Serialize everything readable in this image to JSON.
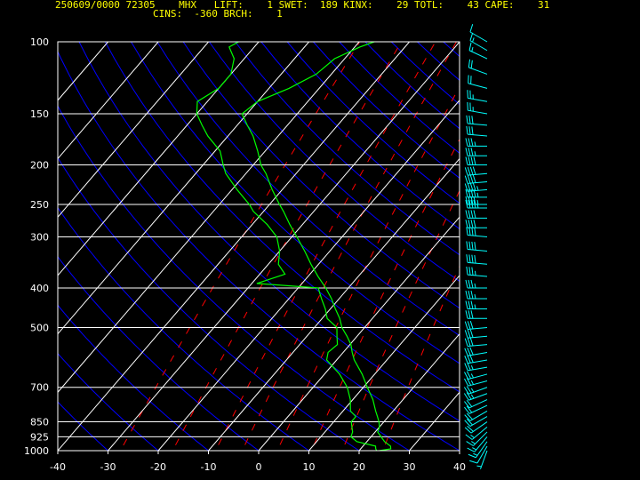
{
  "header": {
    "line1": "250609/0000 72305    MHX   LIFT:    1 SWET:  189 KINX:    29 TOTL:    43 CAPE:    31",
    "line2": "CINS:  -360 BRCH:    1"
  },
  "colors": {
    "background": "#000000",
    "header_text": "#ffff00",
    "axis_text": "#ffffff",
    "isobars_isotherms": "#ffffff",
    "dry_adiabats": "#0000ff",
    "mixing_ratio": "#ff0000",
    "temperature": "#00ff00",
    "dewpoint": "#00ff00",
    "wind_barbs": "#00ffff"
  },
  "chart_data": {
    "type": "line",
    "subtype": "skew-t log-p",
    "x_axis": {
      "range": [
        -40,
        40
      ],
      "ticks": [
        "-40",
        "-30",
        "-20",
        "-10",
        "0",
        "10",
        "20",
        "30",
        "40"
      ]
    },
    "y_axis": {
      "range": [
        1000,
        100
      ],
      "scale": "log",
      "ticks": [
        "100",
        "150",
        "200",
        "250",
        "300",
        "400",
        "500",
        "700",
        "850",
        "925",
        "1000"
      ]
    },
    "series": [
      {
        "key": "temperature",
        "points": [
          [
            1000,
            24
          ],
          [
            990,
            26
          ],
          [
            975,
            25.5
          ],
          [
            950,
            23.5
          ],
          [
            925,
            22
          ],
          [
            900,
            20.5
          ],
          [
            875,
            20
          ],
          [
            850,
            19
          ],
          [
            825,
            17.8
          ],
          [
            800,
            16.5
          ],
          [
            750,
            14
          ],
          [
            700,
            10.8
          ],
          [
            650,
            7.5
          ],
          [
            600,
            3.5
          ],
          [
            575,
            1.8
          ],
          [
            550,
            0.2
          ],
          [
            525,
            -2
          ],
          [
            500,
            -4.5
          ],
          [
            475,
            -6.5
          ],
          [
            450,
            -9
          ],
          [
            425,
            -11.5
          ],
          [
            400,
            -14.5
          ],
          [
            375,
            -18
          ],
          [
            350,
            -21.5
          ],
          [
            325,
            -25
          ],
          [
            300,
            -29
          ],
          [
            280,
            -32.5
          ],
          [
            260,
            -36
          ],
          [
            250,
            -38
          ],
          [
            230,
            -42
          ],
          [
            210,
            -46
          ],
          [
            200,
            -48.5
          ],
          [
            185,
            -51.5
          ],
          [
            170,
            -55
          ],
          [
            160,
            -58
          ],
          [
            150,
            -61
          ],
          [
            140,
            -60
          ],
          [
            130,
            -56
          ],
          [
            120,
            -53
          ],
          [
            110,
            -52
          ],
          [
            103,
            -49
          ],
          [
            100,
            -47
          ]
        ]
      },
      {
        "key": "dewpoint",
        "points": [
          [
            1000,
            23.5
          ],
          [
            990,
            23
          ],
          [
            975,
            22.5
          ],
          [
            950,
            18
          ],
          [
            925,
            16
          ],
          [
            900,
            15.5
          ],
          [
            875,
            14.5
          ],
          [
            850,
            13.5
          ],
          [
            825,
            13.5
          ],
          [
            800,
            11.5
          ],
          [
            750,
            9.5
          ],
          [
            700,
            6.8
          ],
          [
            650,
            3
          ],
          [
            600,
            -2
          ],
          [
            575,
            -3
          ],
          [
            550,
            -2.5
          ],
          [
            525,
            -4
          ],
          [
            500,
            -5.5
          ],
          [
            475,
            -9
          ],
          [
            450,
            -11
          ],
          [
            425,
            -13.5
          ],
          [
            400,
            -16
          ],
          [
            390,
            -29
          ],
          [
            370,
            -25
          ],
          [
            350,
            -28
          ],
          [
            325,
            -30
          ],
          [
            300,
            -33
          ],
          [
            280,
            -37
          ],
          [
            260,
            -42
          ],
          [
            250,
            -44
          ],
          [
            230,
            -49
          ],
          [
            210,
            -54
          ],
          [
            200,
            -56
          ],
          [
            185,
            -59
          ],
          [
            170,
            -64
          ],
          [
            160,
            -67
          ],
          [
            150,
            -70
          ],
          [
            140,
            -72
          ],
          [
            130,
            -70
          ],
          [
            120,
            -70
          ],
          [
            110,
            -72
          ],
          [
            103,
            -75
          ],
          [
            100,
            -74
          ]
        ]
      }
    ],
    "wind_barbs": {
      "note": "wind profile column at right edge",
      "levels_hpa": [
        1000,
        975,
        950,
        925,
        900,
        875,
        850,
        825,
        800,
        775,
        750,
        725,
        700,
        675,
        650,
        625,
        600,
        575,
        550,
        525,
        500,
        475,
        450,
        425,
        400,
        375,
        350,
        325,
        300,
        285,
        270,
        255,
        250,
        240,
        230,
        220,
        210,
        200,
        190,
        180,
        170,
        160,
        150,
        140,
        130,
        120,
        110,
        105,
        100
      ],
      "direction_deg": [
        200,
        210,
        215,
        220,
        225,
        230,
        235,
        240,
        240,
        245,
        245,
        250,
        250,
        255,
        255,
        260,
        260,
        260,
        265,
        265,
        265,
        270,
        270,
        270,
        270,
        275,
        275,
        275,
        275,
        270,
        270,
        270,
        270,
        270,
        265,
        265,
        265,
        270,
        270,
        270,
        275,
        275,
        280,
        280,
        285,
        290,
        295,
        300,
        300
      ],
      "speed_kt": [
        5,
        10,
        15,
        15,
        15,
        15,
        20,
        20,
        20,
        20,
        20,
        25,
        25,
        25,
        25,
        25,
        30,
        30,
        30,
        30,
        30,
        30,
        35,
        35,
        35,
        35,
        40,
        40,
        40,
        40,
        40,
        45,
        45,
        45,
        45,
        40,
        40,
        40,
        35,
        35,
        30,
        30,
        25,
        25,
        20,
        20,
        15,
        15,
        10
      ]
    }
  }
}
